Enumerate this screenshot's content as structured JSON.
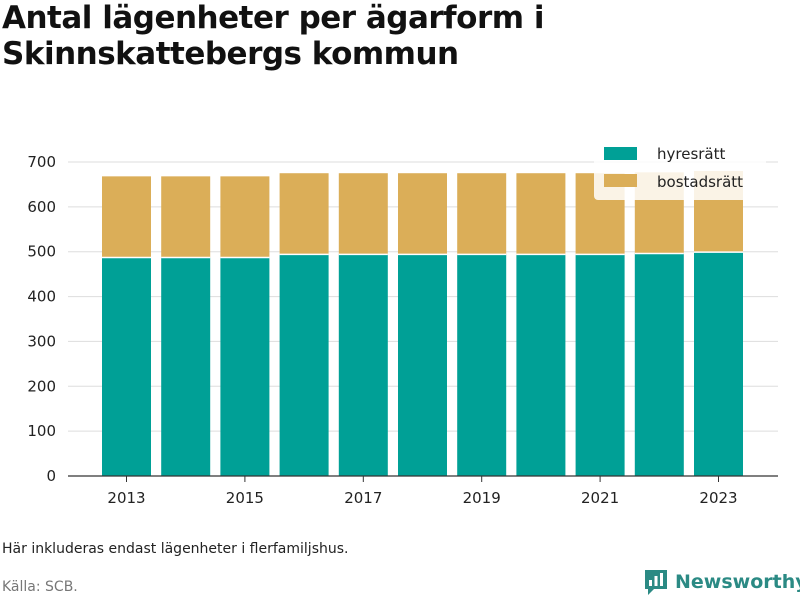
{
  "title": "Antal lägenheter per ägarform i Skinnskattebergs kommun",
  "note": "Här inkluderas endast lägenheter i flerfamiljshus.",
  "source": "Källa: SCB.",
  "brand": {
    "name": "Newsworthy",
    "icon": "newsworthy-logo-icon",
    "color": "#2b8a84"
  },
  "chart_data": {
    "type": "bar",
    "stacked": true,
    "categories": [
      "2013",
      "2014",
      "2015",
      "2016",
      "2017",
      "2018",
      "2019",
      "2020",
      "2021",
      "2022",
      "2023"
    ],
    "x_tick_labels": [
      "2013",
      "2015",
      "2017",
      "2019",
      "2021",
      "2023"
    ],
    "series": [
      {
        "name": "hyresrätt",
        "color": "#00a096",
        "values": [
          487,
          487,
          487,
          494,
          494,
          494,
          494,
          494,
          494,
          496,
          499
        ]
      },
      {
        "name": "bostadsrätt",
        "color": "#dbae58",
        "values": [
          181,
          181,
          181,
          181,
          181,
          181,
          181,
          181,
          181,
          181,
          181
        ]
      }
    ],
    "ylim": [
      0,
      700
    ],
    "y_ticks": [
      0,
      100,
      200,
      300,
      400,
      500,
      600,
      700
    ],
    "xlabel": "",
    "ylabel": "",
    "grid": true,
    "legend_position": "top-right"
  }
}
